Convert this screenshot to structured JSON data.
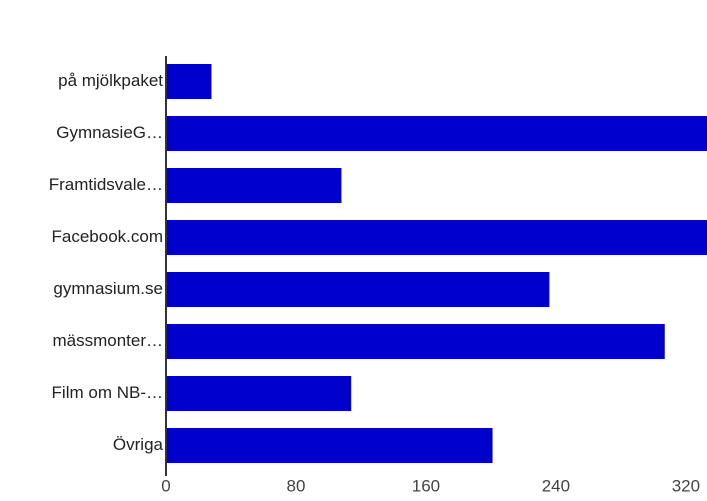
{
  "chart_data": {
    "type": "bar",
    "orientation": "horizontal",
    "categories": [
      "på mjölkpaket",
      "GymnasieG…",
      "Framtidsvale…",
      "Facebook.com",
      "gymnasium.se",
      "mässmonter…",
      "Film om NB-…",
      "Övriga"
    ],
    "values": [
      28,
      340,
      108,
      340,
      236,
      307,
      114,
      201
    ],
    "xlim": [
      0,
      333
    ],
    "xticks": [
      0,
      80,
      160,
      240,
      320
    ],
    "grid": false,
    "legend": "none",
    "bar_color": "#0000cc",
    "axis_color": "#333333"
  }
}
